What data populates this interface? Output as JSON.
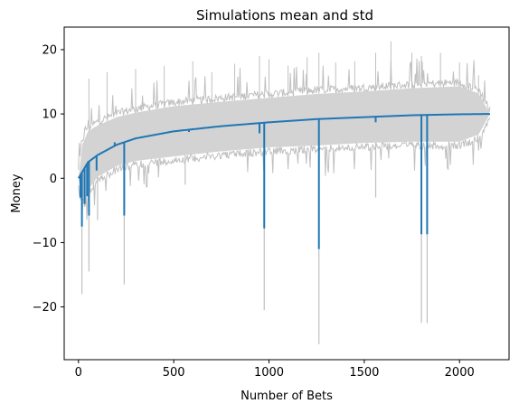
{
  "chart_data": {
    "type": "line",
    "title": "Simulations mean and std",
    "xlabel": "Number of Bets",
    "ylabel": "Money",
    "xlim": [
      -75,
      2260
    ],
    "ylim": [
      -28.2,
      23.5
    ],
    "x_ticks": [
      0,
      500,
      1000,
      1500,
      2000
    ],
    "x_tick_labels": [
      "0",
      "500",
      "1000",
      "1500",
      "2000"
    ],
    "y_ticks": [
      -20,
      -10,
      0,
      10,
      20
    ],
    "y_tick_labels": [
      "−20",
      "−10",
      "0",
      "10",
      "20"
    ],
    "grid": false,
    "x_max": 2160,
    "mean_curve": {
      "color": "#1f77b4",
      "description": "approx. 10*sqrt(x/2160), with downward spikes",
      "points": [
        [
          0,
          0
        ],
        [
          20,
          1.0
        ],
        [
          50,
          2.5
        ],
        [
          100,
          3.6
        ],
        [
          200,
          5.2
        ],
        [
          300,
          6.2
        ],
        [
          500,
          7.3
        ],
        [
          750,
          8.1
        ],
        [
          1000,
          8.7
        ],
        [
          1250,
          9.2
        ],
        [
          1500,
          9.5
        ],
        [
          1750,
          9.8
        ],
        [
          2000,
          9.95
        ],
        [
          2160,
          10.0
        ]
      ],
      "spikes": [
        [
          10,
          -3.0
        ],
        [
          18,
          -7.5
        ],
        [
          32,
          -4.0
        ],
        [
          45,
          -2.8
        ],
        [
          55,
          -5.8
        ],
        [
          95,
          1.2
        ],
        [
          190,
          5.6
        ],
        [
          240,
          -5.8
        ],
        [
          290,
          6.0
        ],
        [
          580,
          7.2
        ],
        [
          950,
          7.0
        ],
        [
          975,
          -7.8
        ],
        [
          1262,
          -11.0
        ],
        [
          1560,
          8.7
        ],
        [
          1800,
          -8.7
        ],
        [
          1830,
          -8.7
        ]
      ]
    },
    "std_band": {
      "color": "#d3d3d3",
      "upper": [
        [
          0,
          0
        ],
        [
          20,
          5.2
        ],
        [
          50,
          7.3
        ],
        [
          100,
          8.2
        ],
        [
          200,
          9.5
        ],
        [
          300,
          10.2
        ],
        [
          500,
          11.2
        ],
        [
          750,
          11.9
        ],
        [
          1000,
          12.5
        ],
        [
          1250,
          13.1
        ],
        [
          1500,
          13.5
        ],
        [
          1750,
          14.0
        ],
        [
          2000,
          14.3
        ],
        [
          2100,
          13.2
        ],
        [
          2160,
          10.0
        ]
      ],
      "lower": [
        [
          0,
          0
        ],
        [
          20,
          -3.2
        ],
        [
          50,
          -1.8
        ],
        [
          100,
          0.2
        ],
        [
          200,
          1.9
        ],
        [
          300,
          2.7
        ],
        [
          500,
          3.4
        ],
        [
          750,
          4.2
        ],
        [
          1000,
          4.8
        ],
        [
          1250,
          5.1
        ],
        [
          1500,
          5.5
        ],
        [
          1750,
          5.7
        ],
        [
          2000,
          5.7
        ],
        [
          2100,
          6.8
        ],
        [
          2160,
          10.0
        ]
      ]
    },
    "std_outline": {
      "color": "#c0c0c0",
      "upper_peaks": [
        [
          55,
          15.5
        ],
        [
          150,
          16.5
        ],
        [
          300,
          17.0
        ],
        [
          450,
          17.5
        ],
        [
          600,
          18.2
        ],
        [
          700,
          16.5
        ],
        [
          820,
          17.8
        ],
        [
          950,
          19.0
        ],
        [
          1000,
          18.5
        ],
        [
          1100,
          17.5
        ],
        [
          1200,
          18.8
        ],
        [
          1262,
          19.5
        ],
        [
          1350,
          18.0
        ],
        [
          1450,
          18.2
        ],
        [
          1560,
          19.5
        ],
        [
          1640,
          21.3
        ],
        [
          1750,
          19.5
        ],
        [
          1800,
          19.0
        ],
        [
          1900,
          19.5
        ],
        [
          2000,
          18.0
        ],
        [
          2100,
          16.0
        ]
      ],
      "lower_spikes": [
        [
          18,
          -18.0
        ],
        [
          55,
          -14.5
        ],
        [
          100,
          -6.5
        ],
        [
          240,
          -16.5
        ],
        [
          560,
          -1.0
        ],
        [
          975,
          -20.5
        ],
        [
          1262,
          -25.8
        ],
        [
          1560,
          -3.0
        ],
        [
          1800,
          -22.5
        ],
        [
          1830,
          -22.5
        ]
      ]
    }
  }
}
